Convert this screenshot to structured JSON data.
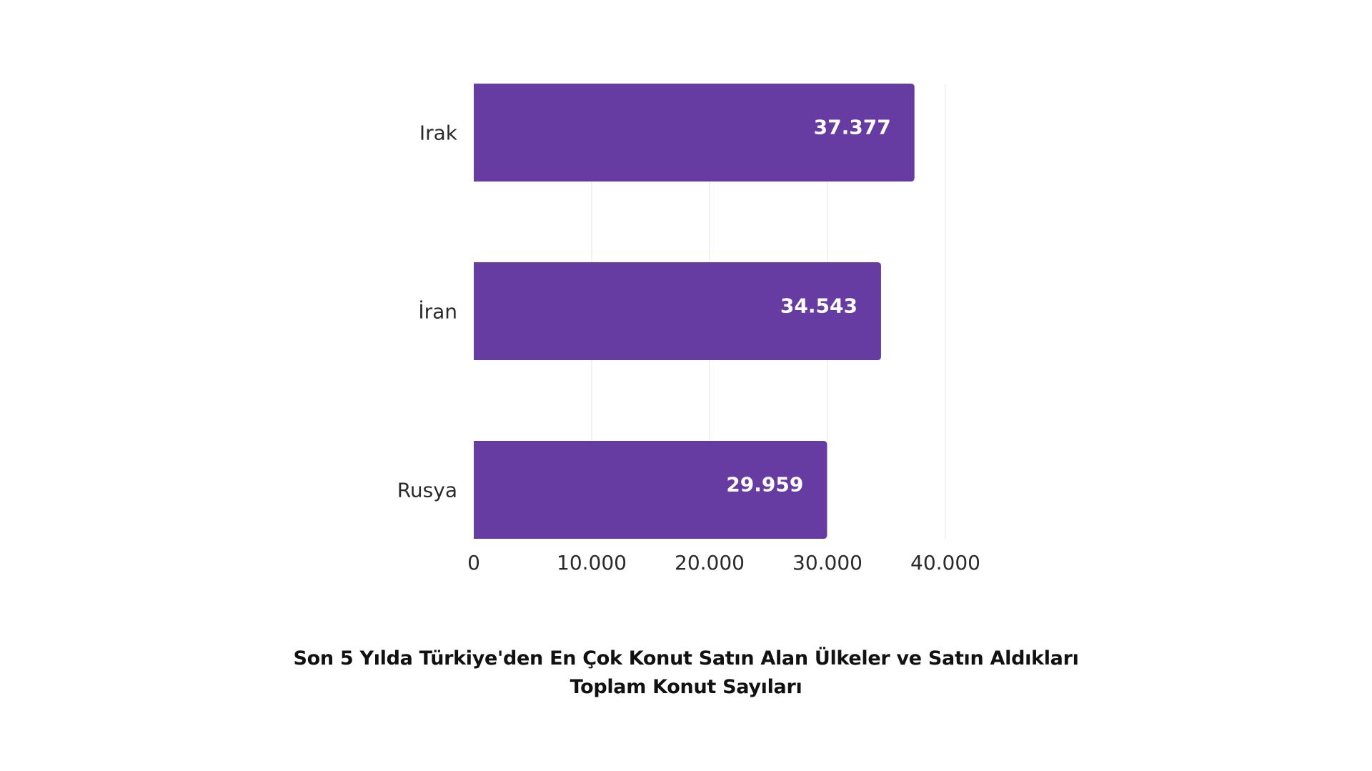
{
  "chart_data": {
    "type": "bar",
    "orientation": "horizontal",
    "title": "Son 5 Yılda Türkiye'den En Çok Konut Satın Alan Ülkeler ve Satın Aldıkları Toplam Konut Sayıları",
    "categories": [
      "Irak",
      "İran",
      "Rusya"
    ],
    "values": [
      37377,
      34543,
      29959
    ],
    "value_labels": [
      "37.377",
      "34.543",
      "29.959"
    ],
    "x_ticks": [
      0,
      10000,
      20000,
      30000,
      40000
    ],
    "x_tick_labels": [
      "0",
      "10.000",
      "20.000",
      "30.000",
      "40.000"
    ],
    "xlim": [
      0,
      40000
    ],
    "xlabel": "",
    "ylabel": "",
    "grid": true,
    "legend": "none",
    "bar_color": "#663ca3",
    "value_label_color": "#ffffff"
  }
}
